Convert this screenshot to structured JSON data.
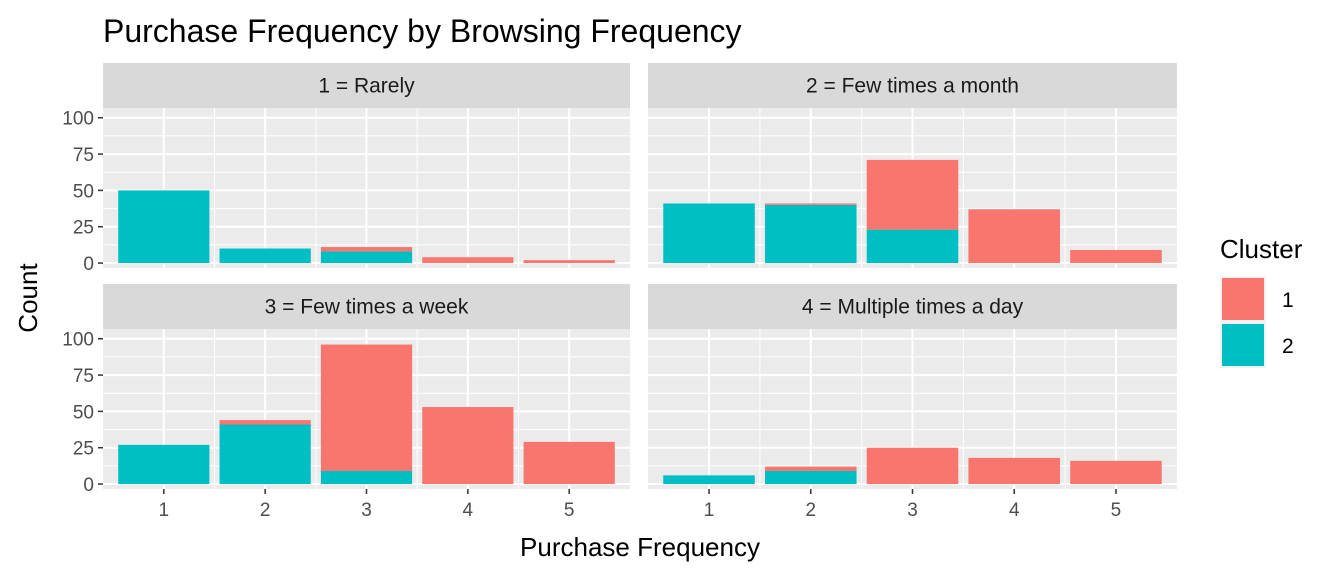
{
  "chart_data": {
    "type": "bar",
    "stacked": true,
    "title": "Purchase Frequency by Browsing Frequency",
    "xlabel": "Purchase Frequency",
    "ylabel": "Count",
    "categories": [
      "1",
      "2",
      "3",
      "4",
      "5"
    ],
    "ylim": [
      0,
      100
    ],
    "yticks": [
      0,
      25,
      50,
      75,
      100
    ],
    "grid": true,
    "legend": {
      "title": "Cluster",
      "position": "right",
      "entries": [
        {
          "label": "1",
          "color": "#F8766D"
        },
        {
          "label": "2",
          "color": "#00BFC4"
        }
      ]
    },
    "panels": [
      {
        "label": "1 = Rarely",
        "series": [
          {
            "name": "1",
            "values": [
              0,
              0,
              3,
              4,
              2
            ]
          },
          {
            "name": "2",
            "values": [
              50,
              10,
              8,
              0,
              0
            ]
          }
        ]
      },
      {
        "label": "2 = Few times a month",
        "series": [
          {
            "name": "1",
            "values": [
              0,
              1,
              48,
              37,
              9
            ]
          },
          {
            "name": "2",
            "values": [
              41,
              40,
              23,
              0,
              0
            ]
          }
        ]
      },
      {
        "label": "3 = Few times a week",
        "series": [
          {
            "name": "1",
            "values": [
              0,
              3,
              87,
              53,
              29
            ]
          },
          {
            "name": "2",
            "values": [
              27,
              41,
              9,
              0,
              0
            ]
          }
        ]
      },
      {
        "label": "4 = Multiple times a day",
        "series": [
          {
            "name": "1",
            "values": [
              0,
              3,
              25,
              18,
              16
            ]
          },
          {
            "name": "2",
            "values": [
              6,
              9,
              0,
              0,
              0
            ]
          }
        ]
      }
    ]
  }
}
